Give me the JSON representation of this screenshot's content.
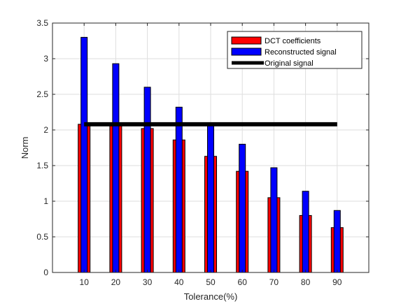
{
  "chart_data": {
    "type": "bar",
    "categories": [
      "10",
      "20",
      "30",
      "40",
      "50",
      "60",
      "70",
      "80",
      "90"
    ],
    "xlabel": "Tolerance(%)",
    "ylabel": "Norm",
    "ylim": [
      0,
      3.5
    ],
    "yticks": [
      "0",
      "0.5",
      "1",
      "1.5",
      "2",
      "2.5",
      "3",
      "3.5"
    ],
    "grid": true,
    "legend_position": "top-right",
    "series": [
      {
        "name": "DCT coefficients",
        "color": "#ff0000",
        "values": [
          2.08,
          2.08,
          2.02,
          1.86,
          1.63,
          1.42,
          1.05,
          0.8,
          0.63
        ]
      },
      {
        "name": "Reconstructed signal",
        "color": "#0000ff",
        "values": [
          3.3,
          2.93,
          2.6,
          2.32,
          2.07,
          1.8,
          1.47,
          1.14,
          0.87
        ]
      }
    ],
    "reference_line": {
      "name": "Original signal",
      "color": "#000000",
      "value": 2.08,
      "x_range": [
        "10",
        "90"
      ]
    }
  }
}
